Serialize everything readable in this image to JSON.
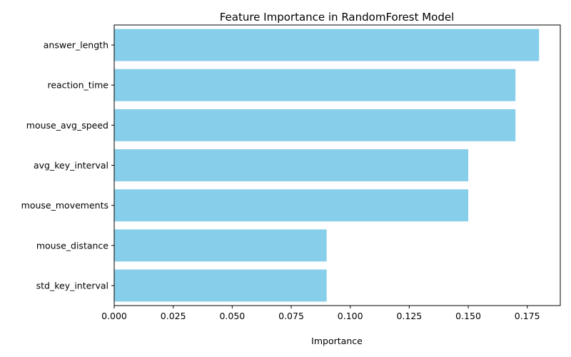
{
  "chart_data": {
    "type": "bar",
    "orientation": "horizontal",
    "title": "Feature Importance in RandomForest Model",
    "xlabel": "Importance",
    "ylabel": "",
    "categories": [
      "std_key_interval",
      "mouse_distance",
      "mouse_movements",
      "avg_key_interval",
      "mouse_avg_speed",
      "reaction_time",
      "answer_length"
    ],
    "values": [
      0.09,
      0.09,
      0.15,
      0.15,
      0.17,
      0.17,
      0.18
    ],
    "xlim": [
      0,
      0.189
    ],
    "xticks": [
      0.0,
      0.025,
      0.05,
      0.075,
      0.1,
      0.125,
      0.15,
      0.175
    ],
    "xtick_labels": [
      "0.000",
      "0.025",
      "0.050",
      "0.075",
      "0.100",
      "0.125",
      "0.150",
      "0.175"
    ],
    "bar_color": "#87ceeb",
    "grid": false,
    "legend": "none"
  }
}
